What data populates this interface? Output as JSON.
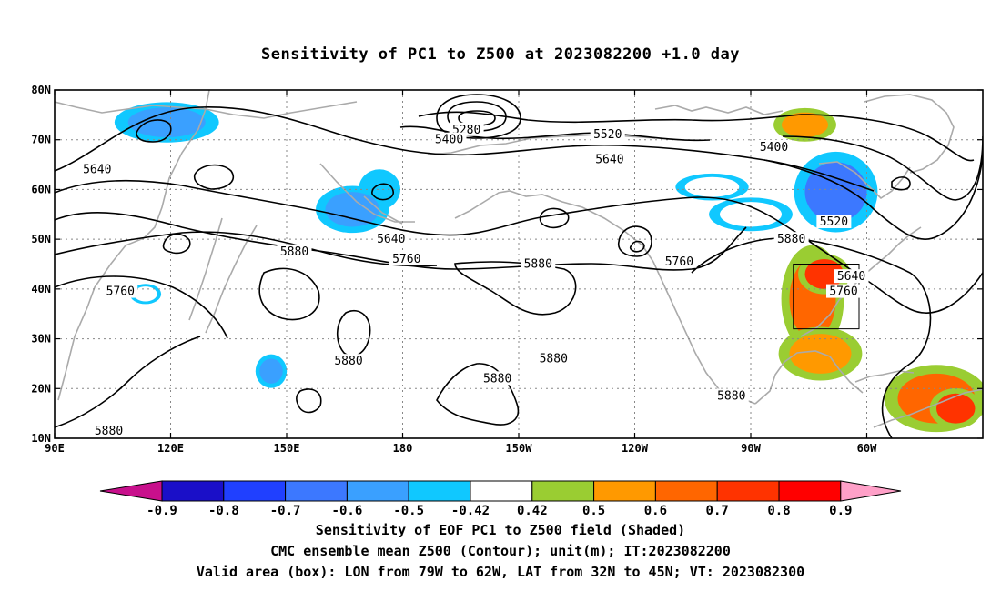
{
  "title": "Sensitivity of PC1 to Z500 at 2023082200 +1.0 day",
  "map": {
    "lon_range": [
      90,
      330
    ],
    "lat_range": [
      10,
      80
    ],
    "lon_ticks": [
      {
        "lon": 90,
        "label": "90E"
      },
      {
        "lon": 120,
        "label": "120E"
      },
      {
        "lon": 150,
        "label": "150E"
      },
      {
        "lon": 180,
        "label": "180"
      },
      {
        "lon": 210,
        "label": "150W"
      },
      {
        "lon": 240,
        "label": "120W"
      },
      {
        "lon": 270,
        "label": "90W"
      },
      {
        "lon": 300,
        "label": "60W"
      }
    ],
    "lat_ticks": [
      {
        "lat": 10,
        "label": "10N"
      },
      {
        "lat": 20,
        "label": "20N"
      },
      {
        "lat": 30,
        "label": "30N"
      },
      {
        "lat": 40,
        "label": "40N"
      },
      {
        "lat": 50,
        "label": "50N"
      },
      {
        "lat": 60,
        "label": "60N"
      },
      {
        "lat": 70,
        "label": "70N"
      },
      {
        "lat": 80,
        "label": "80N"
      }
    ],
    "grid": true,
    "valid_box": {
      "lon_min": 281,
      "lon_max": 298,
      "lat_min": 32,
      "lat_max": 45
    },
    "contour_labels": [
      {
        "text": "5280",
        "lon": 196.5,
        "lat": 72
      },
      {
        "text": "5400",
        "lon": 192,
        "lat": 70
      },
      {
        "text": "5520",
        "lon": 233,
        "lat": 71
      },
      {
        "text": "5640",
        "lon": 233.5,
        "lat": 66
      },
      {
        "text": "5400",
        "lon": 276,
        "lat": 68.5
      },
      {
        "text": "5640",
        "lon": 101,
        "lat": 64
      },
      {
        "text": "5640",
        "lon": 177,
        "lat": 50
      },
      {
        "text": "5520",
        "lon": 291.5,
        "lat": 53.5
      },
      {
        "text": "5880",
        "lon": 280.5,
        "lat": 50
      },
      {
        "text": "5640",
        "lon": 296,
        "lat": 42.5
      },
      {
        "text": "5880",
        "lon": 152,
        "lat": 47.5
      },
      {
        "text": "5760",
        "lon": 181,
        "lat": 46
      },
      {
        "text": "5880",
        "lon": 215,
        "lat": 45
      },
      {
        "text": "5760",
        "lon": 251.5,
        "lat": 45.5
      },
      {
        "text": "5760",
        "lon": 294,
        "lat": 39.5
      },
      {
        "text": "5760",
        "lon": 107,
        "lat": 39.5
      },
      {
        "text": "5880",
        "lon": 166,
        "lat": 25.5
      },
      {
        "text": "5880",
        "lon": 219,
        "lat": 26
      },
      {
        "text": "5880",
        "lon": 204.5,
        "lat": 22
      },
      {
        "text": "5880",
        "lon": 265,
        "lat": 18.5
      },
      {
        "text": "5880",
        "lon": 104,
        "lat": 11.5
      }
    ],
    "shaded_regions": [
      {
        "sign": "negative",
        "level": -0.6,
        "lon": 119,
        "lat": 73.5,
        "rlon": 10,
        "rlat": 3
      },
      {
        "sign": "negative",
        "level": -0.5,
        "lon": 174,
        "lat": 60,
        "rlon": 4,
        "rlat": 3
      },
      {
        "sign": "negative",
        "level": -0.6,
        "lon": 167,
        "lat": 56,
        "rlon": 7,
        "rlat": 3.5
      },
      {
        "sign": "negative",
        "level": -0.42,
        "lon": 260,
        "lat": 60.5,
        "rlon": 7,
        "rlat": 2
      },
      {
        "sign": "negative",
        "level": -0.42,
        "lon": 270,
        "lat": 55,
        "rlon": 8,
        "rlat": 2.5
      },
      {
        "sign": "negative",
        "level": -0.7,
        "lon": 292,
        "lat": 59.5,
        "rlon": 8,
        "rlat": 6
      },
      {
        "sign": "negative",
        "level": -0.6,
        "lon": 146,
        "lat": 23.5,
        "rlon": 3,
        "rlat": 2.5
      },
      {
        "sign": "negative",
        "level": -0.42,
        "lon": 113.5,
        "lat": 39,
        "rlon": 3,
        "rlat": 1.5
      },
      {
        "sign": "positive",
        "level": 0.5,
        "lon": 284,
        "lat": 73,
        "rlon": 6,
        "rlat": 2.5
      },
      {
        "sign": "positive",
        "level": 0.6,
        "lon": 286,
        "lat": 38,
        "rlon": 6,
        "rlat": 8
      },
      {
        "sign": "positive",
        "level": 0.7,
        "lon": 289,
        "lat": 43,
        "rlon": 5,
        "rlat": 3
      },
      {
        "sign": "positive",
        "level": 0.5,
        "lon": 288,
        "lat": 27,
        "rlon": 8,
        "rlat": 4
      },
      {
        "sign": "positive",
        "level": 0.6,
        "lon": 318,
        "lat": 18,
        "rlon": 10,
        "rlat": 5
      },
      {
        "sign": "positive",
        "level": 0.7,
        "lon": 323,
        "lat": 16,
        "rlon": 5,
        "rlat": 3
      }
    ]
  },
  "colorbar": {
    "levels": [
      "-0.9",
      "-0.8",
      "-0.7",
      "-0.6",
      "-0.5",
      "-0.42",
      "0.42",
      "0.5",
      "0.6",
      "0.7",
      "0.8",
      "0.9"
    ],
    "colors": [
      "#c8108c",
      "#1a0fc8",
      "#2040ff",
      "#3c78ff",
      "#3aa0ff",
      "#10c8ff",
      "#ffffff",
      "#9acd32",
      "#ff9900",
      "#ff6600",
      "#ff3300",
      "#ff0000",
      "#ffa0c8"
    ]
  },
  "footer": {
    "line1": "Sensitivity of EOF PC1 to Z500 field (Shaded)",
    "line2": "CMC ensemble mean Z500 (Contour); unit(m); IT:2023082200",
    "line3": "Valid area (box): LON from 79W to 62W, LAT from 32N to 45N; VT: 2023082300"
  }
}
